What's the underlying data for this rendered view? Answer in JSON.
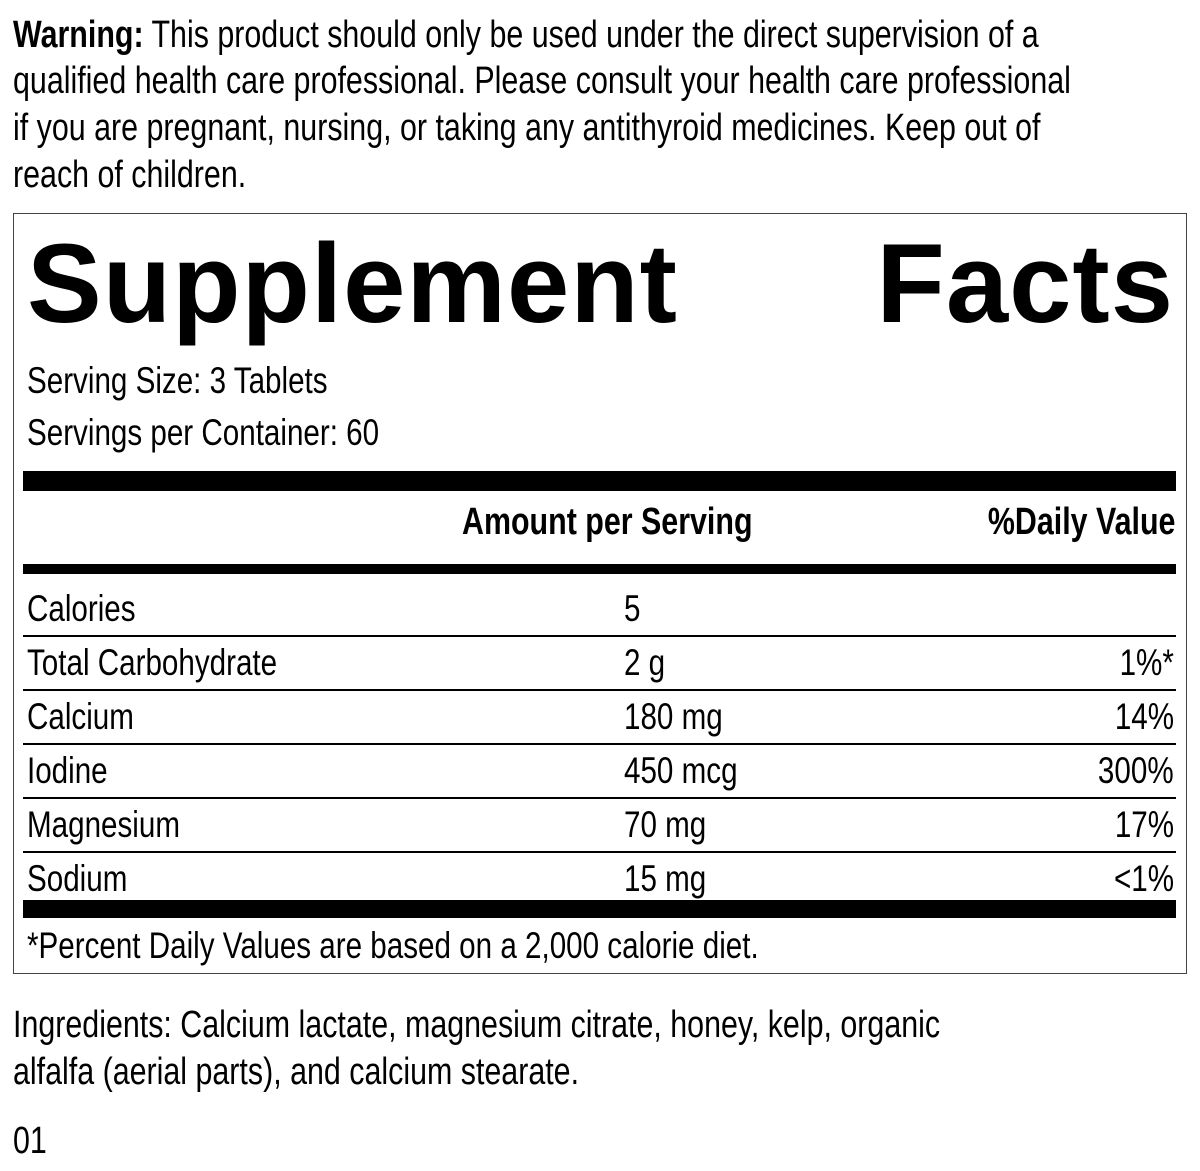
{
  "warning": {
    "label": "Warning:",
    "lines": [
      " This product should only be used under the direct supervision of a",
      "qualified health care professional. Please consult your health care professional",
      "if you are pregnant, nursing, or taking any antithyroid medicines. Keep out of",
      "reach of children."
    ]
  },
  "facts": {
    "title_left": "Supplement",
    "title_right": "Facts",
    "serving_size": "Serving Size: 3 Tablets",
    "servings_per_container": "Servings per Container: 60",
    "col_amount": "Amount per Serving",
    "col_dv": "%Daily Value",
    "rows": [
      {
        "name": "Calories",
        "amount": "5",
        "dv": ""
      },
      {
        "name": "Total Carbohydrate",
        "amount": "2 g",
        "dv": "1%*"
      },
      {
        "name": "Calcium",
        "amount": "180 mg",
        "dv": "14%"
      },
      {
        "name": "Iodine",
        "amount": "450 mcg",
        "dv": "300%"
      },
      {
        "name": "Magnesium",
        "amount": "70 mg",
        "dv": "17%"
      },
      {
        "name": "Sodium",
        "amount": "15 mg",
        "dv": "<1%"
      }
    ],
    "footnote": "*Percent Daily Values are based on a 2,000 calorie diet."
  },
  "ingredients": [
    "Ingredients: Calcium lactate, magnesium citrate, honey, kelp, organic",
    "alfalfa (aerial parts), and calcium stearate."
  ],
  "code": "01"
}
